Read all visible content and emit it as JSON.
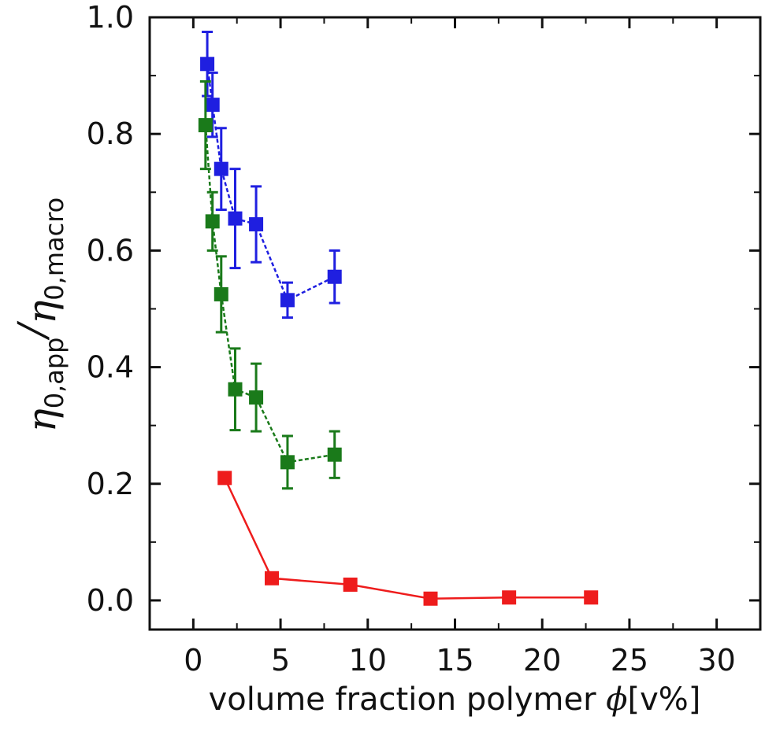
{
  "chart_data": {
    "type": "scatter",
    "title": "",
    "xlabel": "volume fraction polymer",
    "xlabel_symbol": "ϕ",
    "xlabel_unit": "[v%]",
    "ylabel": {
      "numerator": "η",
      "numerator_sub": "0,app",
      "separator": "/",
      "denominator": "η",
      "denominator_sub": "0,macro"
    },
    "xlim": [
      -2.5,
      32.5
    ],
    "ylim": [
      -0.05,
      1.0
    ],
    "xticks": [
      0,
      5,
      10,
      15,
      20,
      25,
      30
    ],
    "xtick_labels": [
      "0",
      "5",
      "10",
      "15",
      "20",
      "25",
      "30"
    ],
    "yticks": [
      0.0,
      0.2,
      0.4,
      0.6,
      0.8,
      1.0
    ],
    "ytick_labels": [
      "0.0",
      "0.2",
      "0.4",
      "0.6",
      "0.8",
      "1.0"
    ],
    "series": [
      {
        "name": "blue",
        "color": "#1f1fe0",
        "x": [
          0.8,
          1.1,
          1.6,
          2.4,
          3.6,
          5.4,
          8.1
        ],
        "y": [
          0.92,
          0.85,
          0.74,
          0.655,
          0.645,
          0.515,
          0.555
        ],
        "err": [
          0.055,
          0.055,
          0.07,
          0.085,
          0.065,
          0.03,
          0.045
        ]
      },
      {
        "name": "green",
        "color": "#1a7a1a",
        "x": [
          0.7,
          1.1,
          1.6,
          2.4,
          3.6,
          5.4,
          8.1
        ],
        "y": [
          0.815,
          0.65,
          0.525,
          0.362,
          0.348,
          0.237,
          0.25
        ],
        "err": [
          0.075,
          0.05,
          0.065,
          0.07,
          0.058,
          0.045,
          0.04
        ]
      },
      {
        "name": "red",
        "color": "#ee1c1c",
        "x": [
          1.8,
          4.5,
          9.0,
          13.6,
          18.1,
          22.8
        ],
        "y": [
          0.21,
          0.038,
          0.027,
          0.003,
          0.005,
          0.005
        ],
        "err": null
      }
    ]
  }
}
